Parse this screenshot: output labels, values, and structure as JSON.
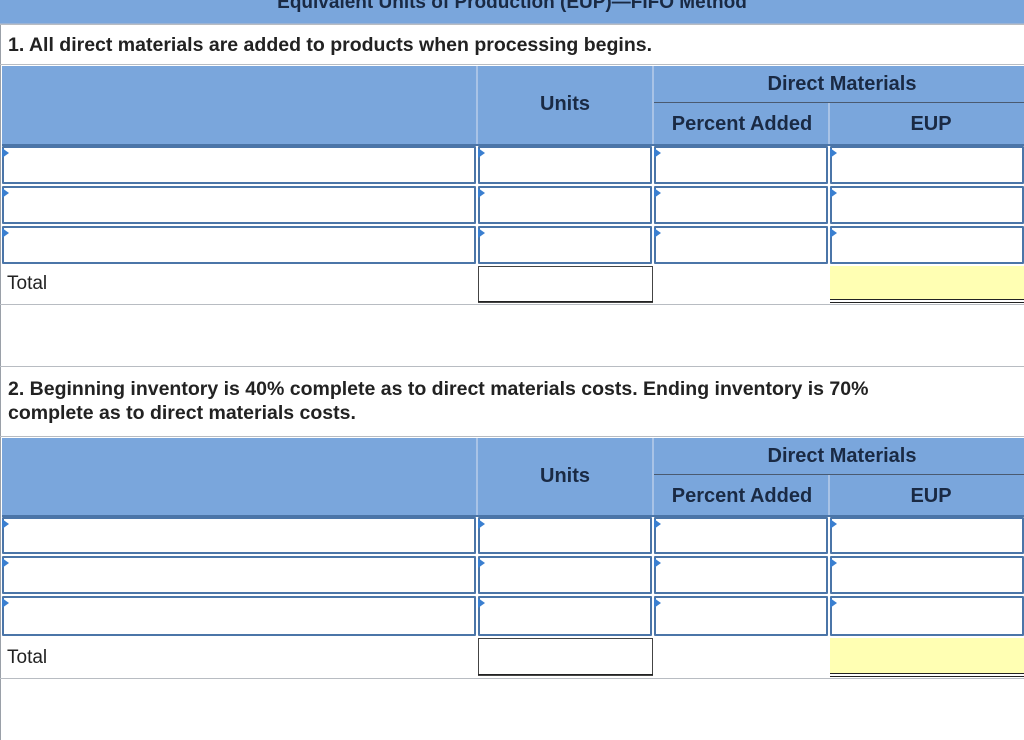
{
  "title": "Equivalent Units of Production (EUP)—FIFO Method",
  "part1": {
    "question": "1. All direct materials are added to products when processing begins.",
    "col_units": "Units",
    "col_group": "Direct Materials",
    "col_percent": "Percent Added",
    "col_eup": "EUP",
    "row_count": 3,
    "total_label": "Total"
  },
  "part2": {
    "question_line1": "2. Beginning inventory is 40% complete as to direct materials costs. Ending inventory is 70%",
    "question_line2": "complete as to direct materials costs.",
    "col_units": "Units",
    "col_group": "Direct Materials",
    "col_percent": "Percent Added",
    "col_eup": "EUP",
    "row_count": 3,
    "total_label": "Total"
  },
  "colors": {
    "header_blue": "#7aa6dc",
    "input_border": "#4b75a8",
    "marker_blue": "#3a7fd0",
    "total_eup_yellow": "#ffffb3"
  }
}
